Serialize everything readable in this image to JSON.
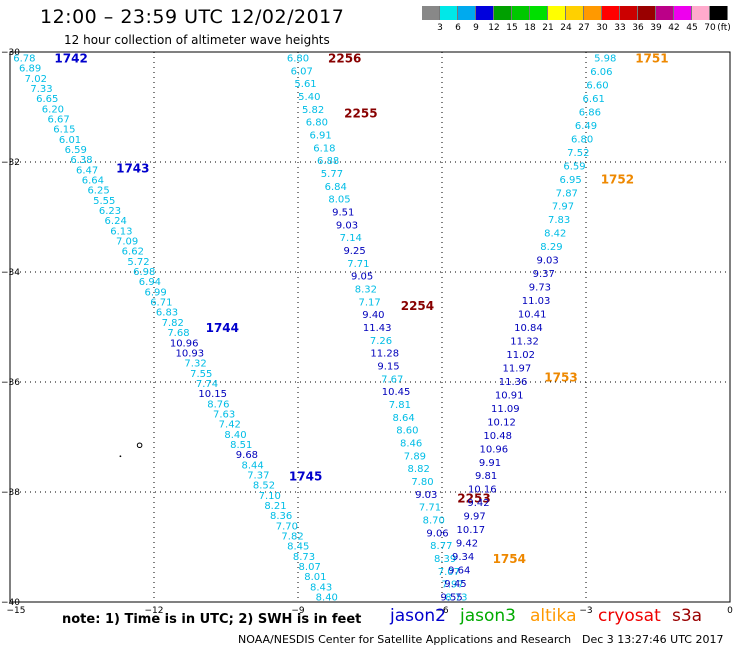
{
  "header": {
    "title": "12:00 – 23:59 UTC 12/02/2017",
    "subtitle": "12 hour collection of altimeter wave heights"
  },
  "color_scale": {
    "unit": "(ft)",
    "swatches": [
      "#888888",
      "#00e8e8",
      "#00aaee",
      "#0000dd",
      "#00a000",
      "#00c800",
      "#00e000",
      "#ffff00",
      "#ffd000",
      "#ff9900",
      "#ff0000",
      "#cc0000",
      "#990000",
      "#bb0088",
      "#ee00ee",
      "#ffaacc",
      "#000000"
    ],
    "labels": [
      "3",
      "6",
      "9",
      "12",
      "15",
      "18",
      "21",
      "24",
      "27",
      "30",
      "33",
      "36",
      "39",
      "42",
      "45",
      "70"
    ]
  },
  "axes": {
    "x_ticks": [
      -15,
      -12,
      -9,
      -6,
      -3,
      0
    ],
    "x_tick_labels": [
      "−15",
      "−12",
      "−9",
      "−6",
      "−3",
      "0"
    ],
    "y_ticks": [
      -30,
      -32,
      -34,
      -36,
      -38,
      -40
    ],
    "y_tick_labels": [
      "−30",
      "−32",
      "−34",
      "−36",
      "−38",
      "−40"
    ],
    "x_range": [
      -15,
      0
    ],
    "y_range": [
      -30,
      -40
    ]
  },
  "chart_data": {
    "type": "scatter",
    "tracks": [
      {
        "id": "t1",
        "lon_start": -14.7,
        "lat_start": -30.1,
        "lon_end": -8.4,
        "lat_end": -39.9,
        "values": [
          "6.78",
          "6.89",
          "7.02",
          "7.33",
          "6.65",
          "6.20",
          "6.67",
          "6.15",
          "6.01",
          "6.59",
          "6.38",
          "6.47",
          "6.64",
          "6.25",
          "5.55",
          "6.23",
          "6.24",
          "6.13",
          "7.09",
          "6.62",
          "5.72",
          "6.98",
          "6.94",
          "6.99",
          "6.71",
          "6.83",
          "7.82",
          "7.68",
          "10.96",
          "10.93",
          "7.32",
          "7.55",
          "7.74",
          "10.15",
          "8.76",
          "7.63",
          "7.42",
          "8.40",
          "8.51",
          "9.68",
          "8.44",
          "7.37",
          "8.52",
          "7.10",
          "8.21",
          "8.36",
          "7.70",
          "7.82",
          "8.45",
          "8.73",
          "8.07",
          "8.01",
          "8.43",
          "8.40"
        ],
        "labels": [
          {
            "text": "1742",
            "lat": -30.1,
            "color": "#0000cc"
          },
          {
            "text": "1743",
            "lat": -32.1,
            "color": "#0000cc"
          },
          {
            "text": "1744",
            "lat": -35.0,
            "color": "#0000cc"
          },
          {
            "text": "1745",
            "lat": -37.7,
            "color": "#0000cc"
          }
        ]
      },
      {
        "id": "t2",
        "lon_start": -9.0,
        "lat_start": -30.1,
        "lon_end": -5.7,
        "lat_end": -39.9,
        "values": [
          "6.80",
          "6.07",
          "5.61",
          "5.40",
          "5.82",
          "6.80",
          "6.91",
          "6.18",
          "6.88",
          "5.77",
          "6.84",
          "8.05",
          "9.51",
          "9.03",
          "7.14",
          "9.25",
          "7.71",
          "9.05",
          "8.32",
          "7.17",
          "9.40",
          "11.43",
          "7.26",
          "11.28",
          "9.15",
          "7.67",
          "10.45",
          "7.81",
          "8.64",
          "8.60",
          "8.46",
          "7.89",
          "8.82",
          "7.80",
          "9.03",
          "7.71",
          "8.70",
          "9.06",
          "8.77",
          "8.39",
          "7.07",
          "7.97",
          "8.73"
        ],
        "labels": [
          {
            "text": "2256",
            "lat": -30.1,
            "color": "#880000"
          },
          {
            "text": "2255",
            "lat": -31.1,
            "color": "#880000"
          },
          {
            "text": "2254",
            "lat": -34.6,
            "color": "#880000"
          },
          {
            "text": "2253",
            "lat": -38.1,
            "color": "#880000"
          }
        ]
      },
      {
        "id": "t3",
        "lon_start": -2.6,
        "lat_start": -30.1,
        "lon_end": -5.8,
        "lat_end": -39.9,
        "values": [
          "5.98",
          "6.06",
          "6.60",
          "6.61",
          "6.86",
          "6.49",
          "6.80",
          "7.52",
          "6.59",
          "6.95",
          "7.87",
          "7.97",
          "7.83",
          "8.42",
          "8.29",
          "9.03",
          "9.37",
          "9.73",
          "11.03",
          "10.41",
          "10.84",
          "11.32",
          "11.02",
          "11.97",
          "11.36",
          "10.91",
          "11.09",
          "10.12",
          "10.48",
          "10.96",
          "9.91",
          "9.81",
          "10.16",
          "9.42",
          "9.97",
          "10.17",
          "9.42",
          "9.34",
          "9.64",
          "9.45",
          "9.55"
        ],
        "labels": [
          {
            "text": "1751",
            "lat": -30.1,
            "color": "#ee8800"
          },
          {
            "text": "1752",
            "lat": -32.3,
            "color": "#ee8800"
          },
          {
            "text": "1753",
            "lat": -35.9,
            "color": "#ee8800"
          },
          {
            "text": "1754",
            "lat": -39.2,
            "color": "#ee8800"
          }
        ]
      }
    ]
  },
  "footer": {
    "note": "note:  1) Time is in UTC;  2) SWH is in feet",
    "legend": [
      {
        "name": "jason2",
        "color": "#0000cc"
      },
      {
        "name": "jason3",
        "color": "#00aa00"
      },
      {
        "name": "altika",
        "color": "#ff9900"
      },
      {
        "name": "cryosat",
        "color": "#ee0000"
      },
      {
        "name": "s3a",
        "color": "#990000"
      }
    ],
    "credit": "NOAA/NESDIS Center for Satellite Applications and Research",
    "timestamp": "Dec  3 13:27:46 UTC 2017"
  }
}
